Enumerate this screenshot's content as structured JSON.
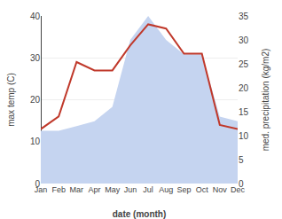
{
  "chart_data": {
    "type": "line",
    "categories": [
      "Jan",
      "Feb",
      "Mar",
      "Apr",
      "May",
      "Jun",
      "Jul",
      "Aug",
      "Sep",
      "Oct",
      "Nov",
      "Dec"
    ],
    "series": [
      {
        "type": "area",
        "color": "#c5d4f0",
        "axis": "y2",
        "values": [
          11,
          11,
          12,
          13,
          16,
          30,
          35,
          30,
          27,
          27,
          14,
          13
        ]
      },
      {
        "type": "line",
        "color": "#c0392b",
        "values": [
          13,
          16,
          29,
          27,
          27,
          33,
          38,
          37,
          31,
          31,
          14,
          13
        ]
      }
    ],
    "xlabel": "date (month)",
    "ylabel": "max temp (C)",
    "y2label": "med. precipitation (kg/m2)",
    "ylim": [
      0,
      40
    ],
    "yticks": [
      0,
      10,
      20,
      30,
      40
    ],
    "y2lim": [
      0,
      35
    ],
    "y2ticks": [
      0,
      5,
      10,
      15,
      20,
      25,
      30,
      35
    ],
    "grid": true
  }
}
